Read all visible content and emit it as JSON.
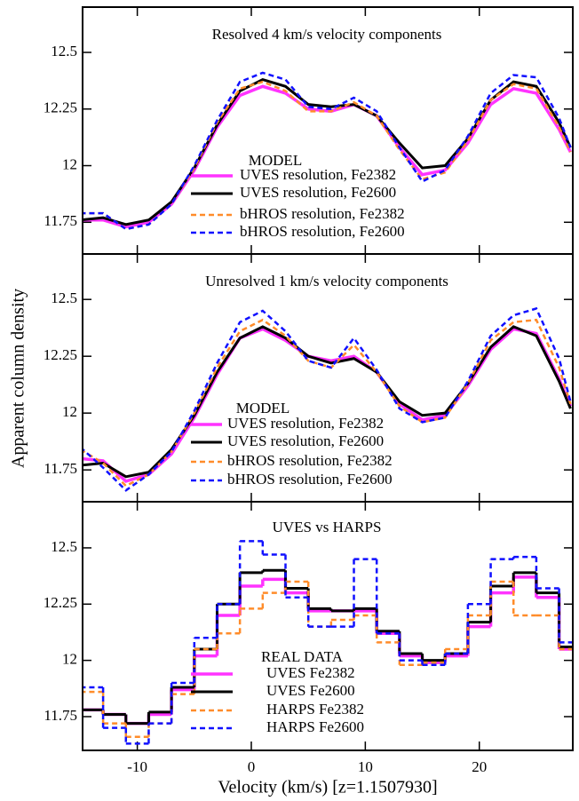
{
  "chart_data": [
    {
      "type": "line",
      "title": "Resolved 4 km/s velocity components",
      "legend_title": "MODEL",
      "x": [
        -15,
        -13,
        -11,
        -9,
        -7,
        -5,
        -3,
        -1,
        1,
        3,
        5,
        7,
        9,
        11,
        13,
        15,
        17,
        19,
        21,
        23,
        25,
        27,
        28
      ],
      "xlim": [
        -14.8,
        28.2
      ],
      "ylim": [
        11.61,
        12.7
      ],
      "yticks": [
        11.75,
        12,
        12.25,
        12.5
      ],
      "series": [
        {
          "name": "UVES resolution, Fe2382",
          "color": "#ff33ff",
          "dash": "solid",
          "values": [
            11.76,
            11.76,
            11.73,
            11.75,
            11.83,
            11.98,
            12.17,
            12.31,
            12.35,
            12.32,
            12.25,
            12.24,
            12.27,
            12.22,
            12.08,
            11.96,
            11.98,
            12.1,
            12.27,
            12.34,
            12.32,
            12.16,
            12.06
          ]
        },
        {
          "name": "UVES resolution, Fe2600",
          "color": "#000000",
          "dash": "solid",
          "values": [
            11.76,
            11.77,
            11.74,
            11.76,
            11.84,
            11.99,
            12.18,
            12.33,
            12.38,
            12.35,
            12.27,
            12.26,
            12.27,
            12.22,
            12.1,
            11.99,
            12.0,
            12.12,
            12.29,
            12.37,
            12.35,
            12.19,
            12.08
          ]
        },
        {
          "name": "bHROS resolution, Fe2382",
          "color": "#ff8c2a",
          "dash": "dashed",
          "values": [
            11.79,
            11.79,
            11.72,
            11.74,
            11.83,
            11.99,
            12.19,
            12.34,
            12.37,
            12.33,
            12.24,
            12.24,
            12.28,
            12.22,
            12.07,
            11.94,
            11.97,
            12.11,
            12.29,
            12.36,
            12.34,
            12.17,
            12.06
          ]
        },
        {
          "name": "bHROS resolution, Fe2600",
          "color": "#1010ff",
          "dash": "dashed",
          "values": [
            11.79,
            11.79,
            11.72,
            11.74,
            11.83,
            12.0,
            12.2,
            12.37,
            12.41,
            12.38,
            12.26,
            12.25,
            12.3,
            12.24,
            12.08,
            11.93,
            11.98,
            12.13,
            12.32,
            12.4,
            12.39,
            12.21,
            12.08
          ]
        }
      ]
    },
    {
      "type": "line",
      "title": "Unresolved 1 km/s velocity components",
      "legend_title": "MODEL",
      "ylabel": "Apparent column density",
      "x": [
        -15,
        -13,
        -11,
        -9,
        -7,
        -5,
        -3,
        -1,
        1,
        3,
        5,
        7,
        9,
        11,
        13,
        15,
        17,
        19,
        21,
        23,
        25,
        27,
        28
      ],
      "xlim": [
        -14.8,
        28.2
      ],
      "ylim": [
        11.61,
        12.7
      ],
      "yticks": [
        11.75,
        12,
        12.25,
        12.5
      ],
      "series": [
        {
          "name": "UVES resolution, Fe2382",
          "color": "#ff33ff",
          "dash": "solid",
          "values": [
            11.8,
            11.79,
            11.7,
            11.73,
            11.82,
            11.98,
            12.17,
            12.33,
            12.37,
            12.32,
            12.25,
            12.23,
            12.25,
            12.18,
            12.04,
            11.97,
            11.99,
            12.12,
            12.28,
            12.37,
            12.35,
            12.15,
            12.03
          ]
        },
        {
          "name": "UVES resolution, Fe2600",
          "color": "#000000",
          "dash": "solid",
          "values": [
            11.77,
            11.78,
            11.72,
            11.74,
            11.84,
            11.99,
            12.18,
            12.33,
            12.38,
            12.33,
            12.25,
            12.22,
            12.24,
            12.18,
            12.05,
            11.99,
            12.0,
            12.13,
            12.29,
            12.38,
            12.34,
            12.14,
            12.02
          ]
        },
        {
          "name": "bHROS resolution, Fe2382",
          "color": "#ff8c2a",
          "dash": "dashed",
          "values": [
            11.84,
            11.78,
            11.68,
            11.73,
            11.83,
            12.0,
            12.2,
            12.36,
            12.41,
            12.34,
            12.23,
            12.2,
            12.3,
            12.18,
            12.03,
            11.96,
            11.98,
            12.13,
            12.32,
            12.4,
            12.41,
            12.2,
            12.04
          ]
        },
        {
          "name": "bHROS resolution, Fe2600",
          "color": "#1010ff",
          "dash": "dashed",
          "values": [
            11.85,
            11.76,
            11.66,
            11.73,
            11.83,
            12.01,
            12.22,
            12.4,
            12.45,
            12.36,
            12.23,
            12.2,
            12.33,
            12.19,
            12.02,
            11.96,
            11.98,
            12.14,
            12.34,
            12.43,
            12.46,
            12.24,
            12.05
          ]
        }
      ]
    },
    {
      "type": "step",
      "title": "UVES vs HARPS",
      "legend_title": "REAL DATA",
      "xlabel": "Velocity (km/s) [z=1.1507930]",
      "x": [
        -15,
        -13,
        -11,
        -9,
        -7,
        -5,
        -3,
        -1,
        1,
        3,
        5,
        7,
        9,
        11,
        13,
        15,
        17,
        19,
        21,
        23,
        25,
        27
      ],
      "bin_width": 2,
      "xlim": [
        -14.8,
        28.2
      ],
      "xticks": [
        -10,
        0,
        10,
        20
      ],
      "ylim": [
        11.6,
        12.705
      ],
      "yticks": [
        11.75,
        12,
        12.25,
        12.5
      ],
      "series": [
        {
          "name": "UVES Fe2382",
          "color": "#ff33ff",
          "dash": "solid",
          "values": [
            11.78,
            11.76,
            11.72,
            11.76,
            11.87,
            12.02,
            12.2,
            12.33,
            12.36,
            12.3,
            12.22,
            12.22,
            12.22,
            12.12,
            12.02,
            11.99,
            12.02,
            12.15,
            12.3,
            12.37,
            12.28,
            12.05
          ]
        },
        {
          "name": "UVES Fe2600",
          "color": "#000000",
          "dash": "solid",
          "values": [
            11.78,
            11.76,
            11.72,
            11.77,
            11.88,
            12.05,
            12.25,
            12.39,
            12.4,
            12.32,
            12.23,
            12.22,
            12.23,
            12.13,
            12.03,
            12.0,
            12.03,
            12.17,
            12.33,
            12.39,
            12.3,
            12.06
          ]
        },
        {
          "name": "HARPS Fe2382",
          "color": "#ff8c2a",
          "dash": "dashed",
          "values": [
            11.86,
            11.72,
            11.66,
            11.72,
            11.85,
            12.05,
            12.12,
            12.23,
            12.3,
            12.35,
            12.15,
            12.18,
            12.2,
            12.08,
            11.98,
            11.99,
            12.05,
            12.2,
            12.35,
            12.2,
            12.2,
            12.05
          ]
        },
        {
          "name": "HARPS Fe2600",
          "color": "#1010ff",
          "dash": "dashed",
          "values": [
            11.88,
            11.7,
            11.63,
            11.72,
            11.9,
            12.1,
            12.25,
            12.53,
            12.47,
            12.28,
            12.15,
            12.15,
            12.45,
            12.12,
            12.0,
            11.98,
            12.03,
            12.25,
            12.45,
            12.46,
            12.32,
            12.08
          ]
        }
      ]
    }
  ]
}
